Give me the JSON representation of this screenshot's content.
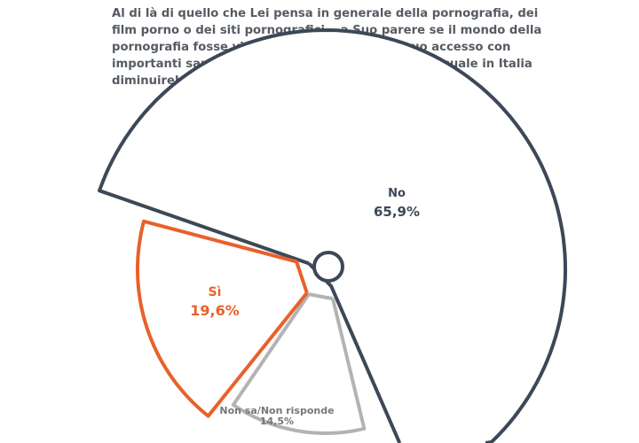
{
  "chart_data": {
    "type": "pie",
    "title": "Al di là di quello che Lei pensa in generale della pornografia, dei film porno o dei siti pornografici… a Suo parere se il mondo della pornografia fosse vietato e bloccato in ogni suo accesso con importanti sanzioni, i casi di stupro e violenza sessuale in Italia diminuirebbero?",
    "slices": [
      {
        "name": "No",
        "value": 65.9,
        "label": "65,9%",
        "color": "#3d4857"
      },
      {
        "name": "Non sa/Non risponde",
        "value": 14.5,
        "label": "14,5%",
        "color": "#b3b3b3"
      },
      {
        "name": "Sì",
        "value": 19.6,
        "label": "19,6%",
        "color": "#e8612c"
      }
    ]
  }
}
